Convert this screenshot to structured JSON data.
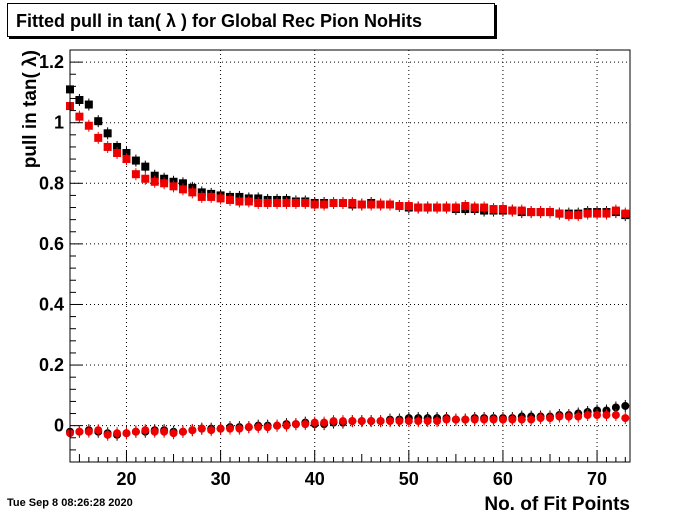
{
  "title": "Fitted pull in tan( λ ) for Global Rec Pion NoHits",
  "datestamp": "Tue Sep  8 08:26:28 2020",
  "chart_data": {
    "type": "scatter",
    "title": "Fitted pull in tan( λ ) for Global Rec Pion NoHits",
    "xlabel": "No. of Fit Points",
    "ylabel": "pull in tan( λ)",
    "xlim": [
      14,
      73.5
    ],
    "ylim": [
      -0.12,
      1.24
    ],
    "x_ticks": [
      20,
      30,
      40,
      50,
      60,
      70
    ],
    "y_ticks": [
      0,
      0.2,
      0.4,
      0.6,
      0.8,
      1,
      1.2
    ],
    "x_tick_labels": [
      "20",
      "30",
      "40",
      "50",
      "60",
      "70"
    ],
    "y_tick_labels": [
      "0",
      "0.2",
      "0.4",
      "0.6",
      "0.8",
      "1",
      "1.2"
    ],
    "grid": true,
    "series": [
      {
        "marker": "square",
        "color": "#000000",
        "x": [
          14,
          15,
          16,
          17,
          18,
          19,
          20,
          21,
          22,
          23,
          24,
          25,
          26,
          27,
          28,
          29,
          30,
          31,
          32,
          33,
          34,
          35,
          36,
          37,
          38,
          39,
          40,
          41,
          42,
          43,
          44,
          45,
          46,
          47,
          48,
          49,
          50,
          51,
          52,
          53,
          54,
          55,
          56,
          57,
          58,
          59,
          60,
          61,
          62,
          63,
          64,
          65,
          66,
          67,
          68,
          69,
          70,
          71,
          72,
          73
        ],
        "y": [
          1.11,
          1.075,
          1.06,
          1.005,
          0.965,
          0.92,
          0.9,
          0.875,
          0.855,
          0.825,
          0.815,
          0.805,
          0.8,
          0.785,
          0.77,
          0.765,
          0.76,
          0.755,
          0.755,
          0.75,
          0.75,
          0.745,
          0.745,
          0.745,
          0.74,
          0.74,
          0.735,
          0.735,
          0.735,
          0.735,
          0.73,
          0.73,
          0.735,
          0.73,
          0.73,
          0.725,
          0.72,
          0.72,
          0.72,
          0.72,
          0.72,
          0.715,
          0.715,
          0.715,
          0.71,
          0.71,
          0.71,
          0.71,
          0.705,
          0.705,
          0.705,
          0.705,
          0.7,
          0.7,
          0.7,
          0.705,
          0.705,
          0.705,
          0.705,
          0.695
        ]
      },
      {
        "marker": "square",
        "color": "#ee0000",
        "x": [
          14,
          15,
          16,
          17,
          18,
          19,
          20,
          21,
          22,
          23,
          24,
          25,
          26,
          27,
          28,
          29,
          30,
          31,
          32,
          33,
          34,
          35,
          36,
          37,
          38,
          39,
          40,
          41,
          42,
          43,
          44,
          45,
          46,
          47,
          48,
          49,
          50,
          51,
          52,
          53,
          54,
          55,
          56,
          57,
          58,
          59,
          60,
          61,
          62,
          63,
          64,
          65,
          66,
          67,
          68,
          69,
          70,
          71,
          72,
          73
        ],
        "y": [
          1.055,
          1.02,
          0.99,
          0.95,
          0.92,
          0.9,
          0.88,
          0.83,
          0.815,
          0.805,
          0.8,
          0.79,
          0.78,
          0.77,
          0.755,
          0.755,
          0.75,
          0.745,
          0.74,
          0.74,
          0.735,
          0.735,
          0.735,
          0.735,
          0.735,
          0.735,
          0.73,
          0.73,
          0.735,
          0.735,
          0.735,
          0.73,
          0.73,
          0.73,
          0.73,
          0.725,
          0.725,
          0.72,
          0.72,
          0.72,
          0.72,
          0.72,
          0.725,
          0.72,
          0.72,
          0.715,
          0.715,
          0.71,
          0.71,
          0.705,
          0.705,
          0.705,
          0.7,
          0.695,
          0.695,
          0.7,
          0.7,
          0.7,
          0.71,
          0.7
        ]
      },
      {
        "marker": "circle",
        "color": "#000000",
        "x": [
          14,
          15,
          16,
          17,
          18,
          19,
          20,
          21,
          22,
          23,
          24,
          25,
          26,
          27,
          28,
          29,
          30,
          31,
          32,
          33,
          34,
          35,
          36,
          37,
          38,
          39,
          40,
          41,
          42,
          43,
          44,
          45,
          46,
          47,
          48,
          49,
          50,
          51,
          52,
          53,
          54,
          55,
          56,
          57,
          58,
          59,
          60,
          61,
          62,
          63,
          64,
          65,
          66,
          67,
          68,
          69,
          70,
          71,
          72,
          73
        ],
        "y": [
          -0.02,
          -0.02,
          -0.015,
          -0.02,
          -0.025,
          -0.03,
          -0.025,
          -0.02,
          -0.02,
          -0.015,
          -0.015,
          -0.02,
          -0.02,
          -0.015,
          -0.01,
          -0.01,
          -0.01,
          -0.005,
          -0.005,
          -0.005,
          0.0,
          0.0,
          0.0,
          0.005,
          0.005,
          0.01,
          0.005,
          0.005,
          0.01,
          0.01,
          0.015,
          0.015,
          0.015,
          0.015,
          0.02,
          0.02,
          0.025,
          0.025,
          0.025,
          0.025,
          0.025,
          0.02,
          0.02,
          0.025,
          0.025,
          0.025,
          0.025,
          0.025,
          0.03,
          0.03,
          0.03,
          0.03,
          0.035,
          0.035,
          0.04,
          0.045,
          0.05,
          0.05,
          0.06,
          0.065
        ]
      },
      {
        "marker": "circle",
        "color": "#ee0000",
        "x": [
          14,
          15,
          16,
          17,
          18,
          19,
          20,
          21,
          22,
          23,
          24,
          25,
          26,
          27,
          28,
          29,
          30,
          31,
          32,
          33,
          34,
          35,
          36,
          37,
          38,
          39,
          40,
          41,
          42,
          43,
          44,
          45,
          46,
          47,
          48,
          49,
          50,
          51,
          52,
          53,
          54,
          55,
          56,
          57,
          58,
          59,
          60,
          61,
          62,
          63,
          64,
          65,
          66,
          67,
          68,
          69,
          70,
          71,
          72,
          73
        ],
        "y": [
          -0.025,
          -0.02,
          -0.02,
          -0.015,
          -0.03,
          -0.025,
          -0.025,
          -0.02,
          -0.015,
          -0.02,
          -0.02,
          -0.025,
          -0.02,
          -0.015,
          -0.01,
          -0.015,
          -0.01,
          -0.01,
          -0.01,
          -0.005,
          -0.005,
          -0.005,
          0.0,
          0.0,
          0.005,
          0.005,
          0.01,
          0.01,
          0.015,
          0.015,
          0.015,
          0.015,
          0.015,
          0.015,
          0.015,
          0.015,
          0.015,
          0.015,
          0.015,
          0.015,
          0.02,
          0.02,
          0.02,
          0.02,
          0.02,
          0.02,
          0.02,
          0.02,
          0.02,
          0.02,
          0.025,
          0.025,
          0.03,
          0.03,
          0.03,
          0.035,
          0.035,
          0.035,
          0.035,
          0.025
        ]
      }
    ]
  }
}
